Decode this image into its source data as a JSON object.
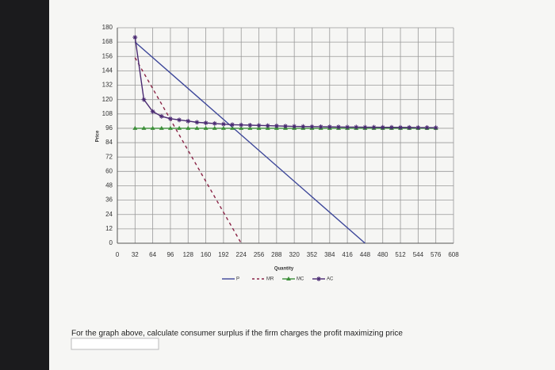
{
  "chart_data": {
    "type": "line",
    "y_label": "Price",
    "x_label": "Quantity",
    "xlim": [
      0,
      608
    ],
    "ylim": [
      0,
      180
    ],
    "xticks": [
      0,
      32,
      64,
      96,
      128,
      160,
      192,
      224,
      256,
      288,
      320,
      352,
      384,
      416,
      448,
      480,
      512,
      544,
      576,
      608
    ],
    "yticks": [
      0,
      12,
      24,
      36,
      48,
      60,
      72,
      84,
      96,
      108,
      120,
      132,
      144,
      156,
      168,
      180
    ],
    "grid": true,
    "series": [
      {
        "name": "P",
        "color": "#3c4699",
        "line_style": "solid",
        "marker": "none",
        "x": [
          32,
          448
        ],
        "values": [
          168,
          0
        ]
      },
      {
        "name": "MR",
        "color": "#8a2446",
        "line_style": "dashed",
        "marker": "none",
        "x": [
          32,
          224
        ],
        "values": [
          155,
          0
        ]
      },
      {
        "name": "MC",
        "color": "#3d8f3a",
        "line_style": "solid",
        "marker": "triangle",
        "x": [
          32,
          48,
          64,
          80,
          96,
          112,
          128,
          144,
          160,
          176,
          192,
          208,
          224,
          240,
          256,
          272,
          288,
          304,
          320,
          336,
          352,
          368,
          384,
          400,
          416,
          432,
          448,
          464,
          480,
          496,
          512,
          528,
          544,
          560,
          576
        ],
        "values": [
          96,
          96,
          96,
          96,
          96,
          96,
          96,
          96,
          96,
          96,
          96,
          96,
          96,
          96,
          96,
          96,
          96,
          96,
          96,
          96,
          96,
          96,
          96,
          96,
          96,
          96,
          96,
          96,
          96,
          96,
          96,
          96,
          96,
          96,
          96
        ]
      },
      {
        "name": "AC",
        "color": "#4a2a72",
        "line_style": "solid",
        "marker": "star",
        "x": [
          32,
          48,
          64,
          80,
          96,
          112,
          128,
          144,
          160,
          176,
          192,
          208,
          224,
          240,
          256,
          272,
          288,
          304,
          320,
          336,
          352,
          368,
          384,
          400,
          416,
          432,
          448,
          464,
          480,
          496,
          512,
          528,
          544,
          560,
          576
        ],
        "values": [
          172,
          120,
          110,
          106,
          104,
          103,
          102,
          101,
          100.5,
          100,
          99.5,
          99,
          98.8,
          98.6,
          98.4,
          98.2,
          98,
          97.8,
          97.6,
          97.5,
          97.4,
          97.3,
          97.2,
          97.1,
          97,
          97,
          96.9,
          96.9,
          96.8,
          96.8,
          96.7,
          96.7,
          96.6,
          96.6,
          96.5
        ]
      }
    ]
  },
  "question": "For the graph above, calculate consumer surplus if the firm charges the profit maximizing price"
}
